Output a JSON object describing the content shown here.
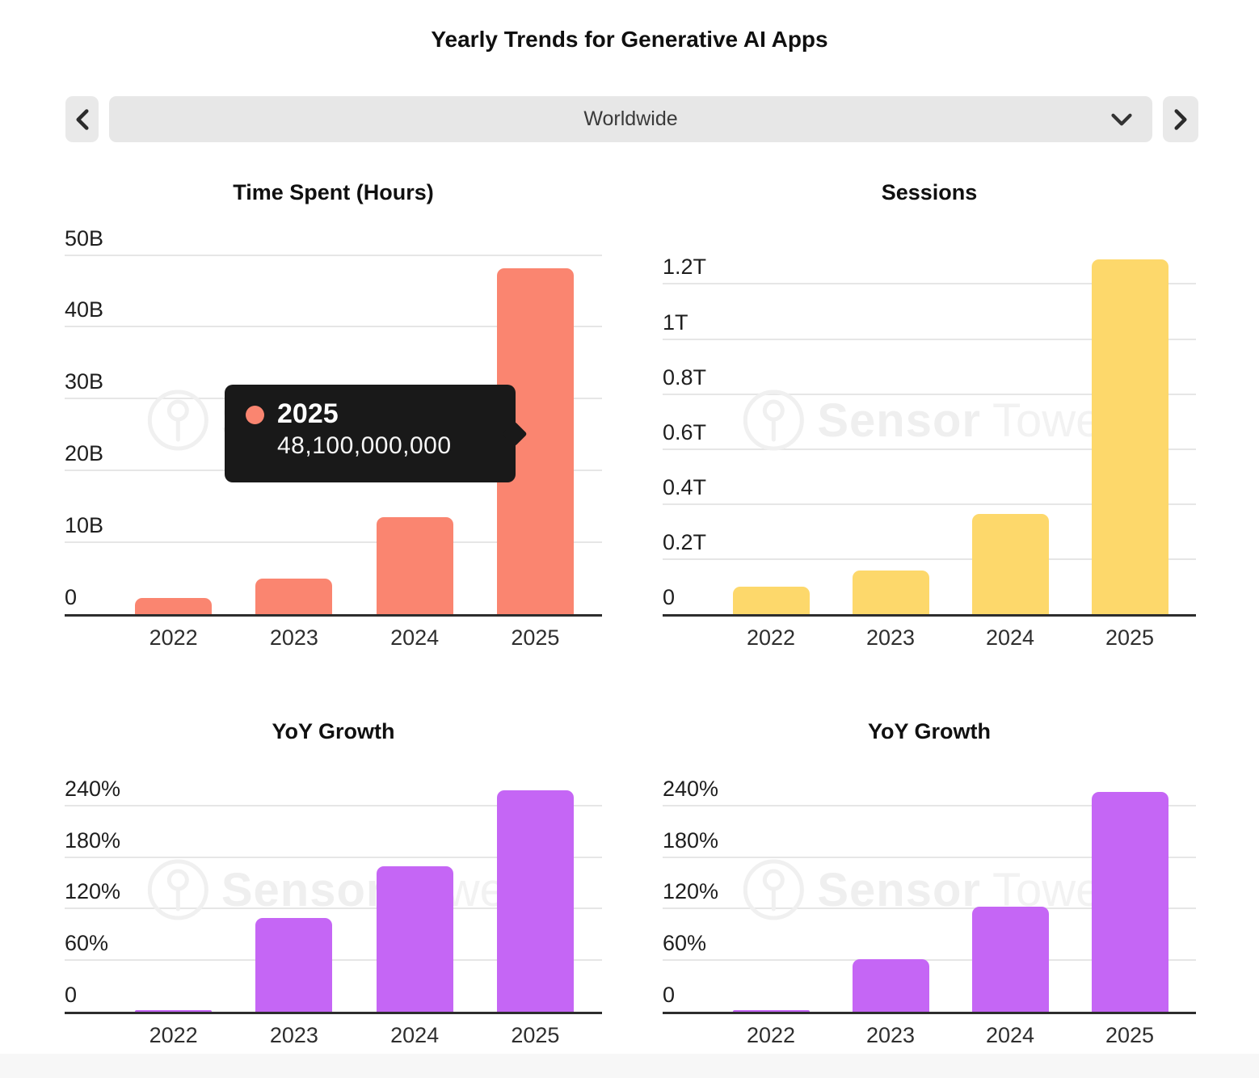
{
  "page": {
    "title": "Yearly Trends for Generative AI Apps"
  },
  "selector": {
    "value": "Worldwide",
    "prev_button_icon": "chevron-left",
    "next_button_icon": "chevron-right",
    "dropdown_icon": "chevron-down"
  },
  "watermark": {
    "logo_icon": "sensor-tower-logo",
    "text_bold": "Sensor",
    "text_light": "Tower"
  },
  "tooltip": {
    "year": "2025",
    "value": "48,100,000,000",
    "marker_color": "#FA8570"
  },
  "colors": {
    "time_spent_bar": "#FA8570",
    "sessions_bar": "#FDD86B",
    "yoy_bar": "#C566F5",
    "tooltip_bg": "#191919",
    "axis": "#2D2D2D",
    "gridline": "#E6E6E6",
    "control_bg": "#E8E8E8",
    "footer_strip": "#F7F7F7"
  },
  "chart_data": [
    {
      "type": "bar",
      "title": "Time Spent (Hours)",
      "value_scale": "billions of hours",
      "categories": [
        "2022",
        "2023",
        "2024",
        "2025"
      ],
      "values": [
        2.3,
        4.9,
        13.5,
        48.1
      ],
      "color": "#FA8570",
      "ticks": {
        "values": [
          0,
          10,
          20,
          30,
          40,
          50
        ],
        "labels": [
          "0",
          "10B",
          "20B",
          "30B",
          "40B",
          "50B"
        ]
      },
      "ylim": [
        0,
        54
      ],
      "grid": true,
      "legend": "none"
    },
    {
      "type": "bar",
      "title": "Sessions",
      "value_scale": "trillions of sessions",
      "categories": [
        "2022",
        "2023",
        "2024",
        "2025"
      ],
      "values": [
        0.1,
        0.16,
        0.365,
        1.29
      ],
      "color": "#FDD86B",
      "ticks": {
        "values": [
          0,
          0.2,
          0.4,
          0.6,
          0.8,
          1,
          1.2
        ],
        "labels": [
          "0",
          "0.2T",
          "0.4T",
          "0.6T",
          "0.8T",
          "1T",
          "1.2T"
        ]
      },
      "ylim": [
        0,
        1.41
      ],
      "grid": true,
      "legend": "none"
    },
    {
      "type": "bar",
      "title": "YoY Growth",
      "value_scale": "percent",
      "categories": [
        "2022",
        "2023",
        "2024",
        "2025"
      ],
      "values": [
        2,
        109,
        169,
        258
      ],
      "color": "#C566F5",
      "ticks": {
        "values": [
          0,
          60,
          120,
          180,
          240
        ],
        "labels": [
          "0",
          "60%",
          "120%",
          "180%",
          "240%"
        ]
      },
      "ylim": [
        0,
        284
      ],
      "grid": true,
      "legend": "none"
    },
    {
      "type": "bar",
      "title": "YoY Growth",
      "value_scale": "percent",
      "categories": [
        "2022",
        "2023",
        "2024",
        "2025"
      ],
      "values": [
        2,
        61,
        122,
        256
      ],
      "color": "#C566F5",
      "ticks": {
        "values": [
          0,
          60,
          120,
          180,
          240
        ],
        "labels": [
          "0",
          "60%",
          "120%",
          "180%",
          "240%"
        ]
      },
      "ylim": [
        0,
        284
      ],
      "grid": true,
      "legend": "none"
    }
  ]
}
